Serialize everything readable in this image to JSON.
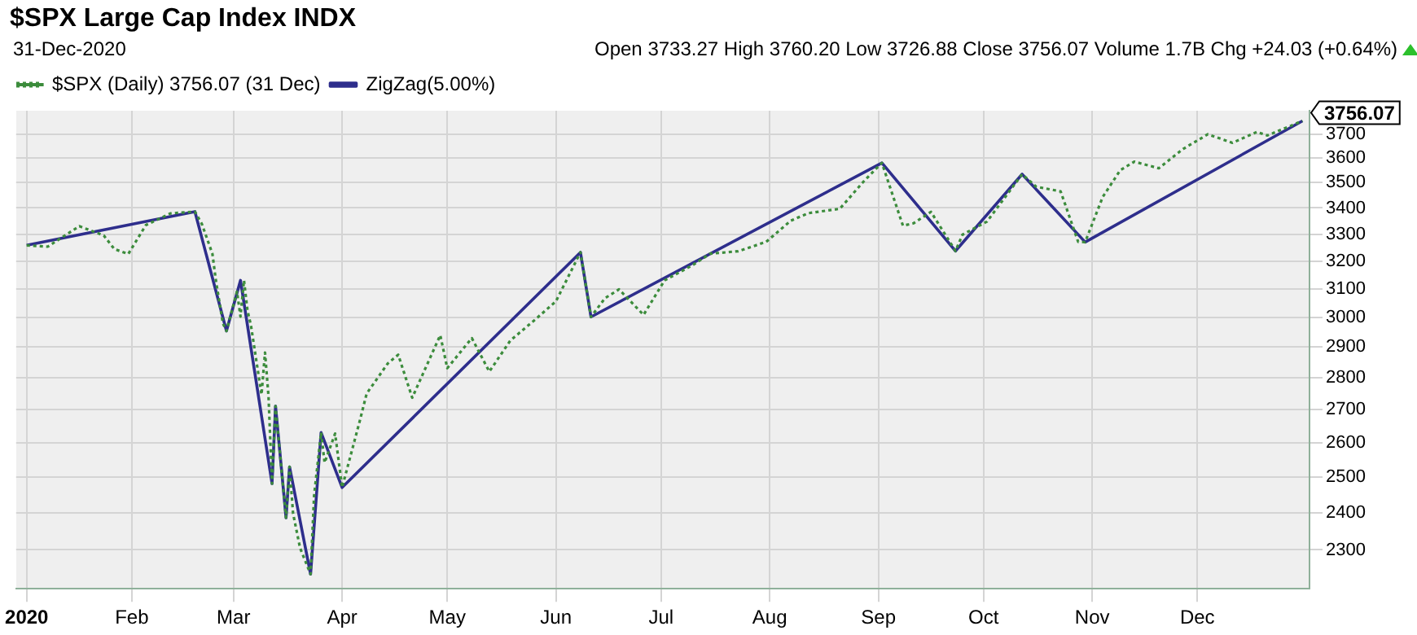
{
  "chart_data": {
    "type": "line",
    "title": "$SPX Large Cap Index INDX",
    "subtitle": "31-Dec-2020",
    "annotations": [
      "Open 3733.27 High 3760.20 Low 3726.88 Close 3756.07 Volume 1.7B Chg +24.03 (+0.64%)",
      {
        "text": "3756.07",
        "x": "2020-12-31",
        "y": 3756.07
      }
    ],
    "series": [
      {
        "name": "$SPX (Daily) 3756.07 (31 Dec)",
        "color": "#3c8c3c",
        "line_style": "dotted",
        "x": [
          "2020-01-02",
          "2020-01-08",
          "2020-01-17",
          "2020-01-24",
          "2020-01-27",
          "2020-01-31",
          "2020-02-05",
          "2020-02-12",
          "2020-02-19",
          "2020-02-21",
          "2020-02-24",
          "2020-02-25",
          "2020-02-27",
          "2020-02-28",
          "2020-03-02",
          "2020-03-03",
          "2020-03-04",
          "2020-03-05",
          "2020-03-06",
          "2020-03-09",
          "2020-03-10",
          "2020-03-11",
          "2020-03-12",
          "2020-03-13",
          "2020-03-16",
          "2020-03-17",
          "2020-03-18",
          "2020-03-20",
          "2020-03-23",
          "2020-03-24",
          "2020-03-26",
          "2020-03-27",
          "2020-03-30",
          "2020-04-01",
          "2020-04-06",
          "2020-04-08",
          "2020-04-14",
          "2020-04-17",
          "2020-04-21",
          "2020-04-29",
          "2020-05-01",
          "2020-05-08",
          "2020-05-13",
          "2020-05-19",
          "2020-05-26",
          "2020-06-01",
          "2020-06-08",
          "2020-06-11",
          "2020-06-15",
          "2020-06-19",
          "2020-06-26",
          "2020-07-02",
          "2020-07-10",
          "2020-07-15",
          "2020-07-23",
          "2020-07-31",
          "2020-08-07",
          "2020-08-12",
          "2020-08-21",
          "2020-08-28",
          "2020-09-02",
          "2020-09-08",
          "2020-09-11",
          "2020-09-16",
          "2020-09-23",
          "2020-09-25",
          "2020-10-02",
          "2020-10-09",
          "2020-10-12",
          "2020-10-16",
          "2020-10-23",
          "2020-10-28",
          "2020-10-30",
          "2020-11-04",
          "2020-11-09",
          "2020-11-13",
          "2020-11-20",
          "2020-11-27",
          "2020-12-04",
          "2020-12-11",
          "2020-12-18",
          "2020-12-21",
          "2020-12-31"
        ],
        "values": [
          3258,
          3253,
          3330,
          3295,
          3244,
          3226,
          3334,
          3379,
          3386,
          3338,
          3226,
          3128,
          2979,
          2954,
          3090,
          3003,
          3130,
          3024,
          2972,
          2747,
          2882,
          2741,
          2481,
          2711,
          2386,
          2529,
          2398,
          2305,
          2237,
          2447,
          2630,
          2541,
          2627,
          2470,
          2664,
          2750,
          2846,
          2875,
          2737,
          2940,
          2831,
          2930,
          2820,
          2922,
          2992,
          3056,
          3232,
          3002,
          3067,
          3098,
          3009,
          3130,
          3185,
          3227,
          3236,
          3271,
          3351,
          3380,
          3397,
          3508,
          3580,
          3332,
          3341,
          3385,
          3237,
          3298,
          3348,
          3477,
          3534,
          3484,
          3465,
          3271,
          3270,
          3443,
          3550,
          3585,
          3558,
          3638,
          3699,
          3663,
          3709,
          3694,
          3756.07
        ]
      },
      {
        "name": "ZigZag(5.00%)",
        "color": "#2e2e8c",
        "line_style": "solid",
        "x": [
          "2020-01-02",
          "2020-02-19",
          "2020-02-28",
          "2020-03-03",
          "2020-03-12",
          "2020-03-13",
          "2020-03-16",
          "2020-03-17",
          "2020-03-23",
          "2020-03-26",
          "2020-04-01",
          "2020-06-08",
          "2020-06-11",
          "2020-09-02",
          "2020-09-23",
          "2020-10-12",
          "2020-10-30",
          "2020-12-31"
        ],
        "values": [
          3258,
          3386,
          2954,
          3130,
          2481,
          2711,
          2386,
          2529,
          2237,
          2630,
          2470,
          3232,
          3002,
          3580,
          3237,
          3534,
          3270,
          3756.07
        ]
      }
    ],
    "xlim": [
      "2019-12-30",
      "2021-01-02"
    ],
    "xticks": [
      {
        "value": "2020-01-02",
        "label": "2020"
      },
      {
        "value": "2020-02-01",
        "label": "Feb"
      },
      {
        "value": "2020-03-01",
        "label": "Mar"
      },
      {
        "value": "2020-04-01",
        "label": "Apr"
      },
      {
        "value": "2020-05-01",
        "label": "May"
      },
      {
        "value": "2020-06-01",
        "label": "Jun"
      },
      {
        "value": "2020-07-01",
        "label": "Jul"
      },
      {
        "value": "2020-08-01",
        "label": "Aug"
      },
      {
        "value": "2020-09-01",
        "label": "Sep"
      },
      {
        "value": "2020-10-01",
        "label": "Oct"
      },
      {
        "value": "2020-11-01",
        "label": "Nov"
      },
      {
        "value": "2020-12-01",
        "label": "Dec"
      }
    ],
    "ylim": [
      2200,
      3800
    ],
    "yticks": [
      2300,
      2400,
      2500,
      2600,
      2700,
      2800,
      2900,
      3000,
      3100,
      3200,
      3300,
      3400,
      3500,
      3600,
      3700
    ],
    "log": "y",
    "grid": true,
    "legend": "top left",
    "marker": "none"
  }
}
